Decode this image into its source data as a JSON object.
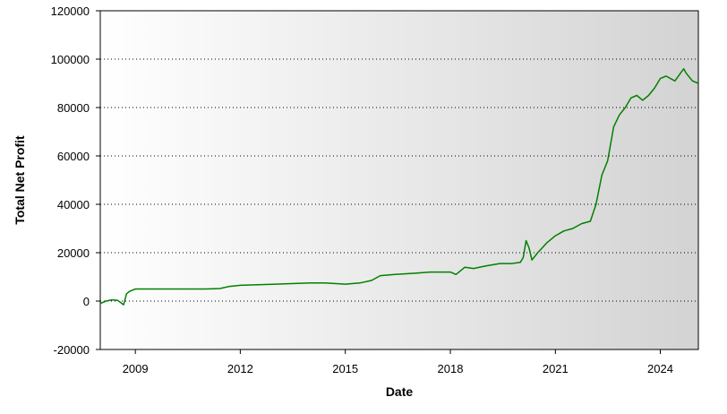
{
  "chart_data": {
    "type": "line",
    "title": "",
    "xlabel": "Date",
    "ylabel": "Total Net Profit",
    "x_ticks": [
      "2009",
      "2012",
      "2015",
      "2018",
      "2021",
      "2024"
    ],
    "y_ticks": [
      "120000",
      "100000",
      "80000",
      "60000",
      "40000",
      "20000",
      "0",
      "-20000"
    ],
    "xlim": [
      "2008-01-01",
      "2025-02-01"
    ],
    "ylim": [
      -20000,
      120000
    ],
    "grid": "horizontal-dotted",
    "line_color": "#008000",
    "background": "gradient-white-to-gray",
    "series": [
      {
        "x": [
          "2008-01-01",
          "2008-03-01",
          "2008-05-01",
          "2008-07-01",
          "2008-09-01",
          "2008-10-01",
          "2008-11-01",
          "2008-12-01",
          "2009-01-01",
          "2009-03-01",
          "2009-06-01",
          "2010-01-01",
          "2011-01-01",
          "2011-06-01",
          "2011-09-01",
          "2012-01-01",
          "2013-01-01",
          "2014-01-01",
          "2014-06-01",
          "2015-01-01",
          "2015-06-01",
          "2015-10-01",
          "2016-01-01",
          "2016-06-01",
          "2017-01-01",
          "2017-06-01",
          "2018-01-01",
          "2018-03-01",
          "2018-06-01",
          "2018-09-01",
          "2019-01-01",
          "2019-06-01",
          "2019-10-01",
          "2020-01-01",
          "2020-02-01",
          "2020-03-01",
          "2020-04-01",
          "2020-05-01",
          "2020-07-01",
          "2020-10-01",
          "2021-01-01",
          "2021-04-01",
          "2021-07-01",
          "2021-10-01",
          "2022-01-01",
          "2022-03-01",
          "2022-05-01",
          "2022-07-01",
          "2022-09-01",
          "2022-11-01",
          "2023-01-01",
          "2023-03-01",
          "2023-05-01",
          "2023-07-01",
          "2023-09-01",
          "2023-11-01",
          "2024-01-01",
          "2024-03-01",
          "2024-06-01",
          "2024-09-01",
          "2024-10-01",
          "2024-12-01",
          "2025-02-01"
        ],
        "y": [
          -1000,
          0,
          500,
          300,
          -1500,
          3000,
          4000,
          4500,
          5000,
          5000,
          5000,
          5000,
          5000,
          5200,
          6000,
          6500,
          7000,
          7500,
          7500,
          7000,
          7500,
          8500,
          10500,
          11000,
          11500,
          12000,
          12000,
          11000,
          14000,
          13500,
          14500,
          15500,
          15500,
          16000,
          18000,
          25000,
          22000,
          17000,
          20000,
          24000,
          27000,
          29000,
          30000,
          32000,
          33000,
          40000,
          52000,
          58000,
          72000,
          77000,
          80000,
          84000,
          85000,
          83000,
          85000,
          88000,
          92000,
          93000,
          91000,
          96000,
          94000,
          91000,
          90000
        ]
      }
    ]
  }
}
